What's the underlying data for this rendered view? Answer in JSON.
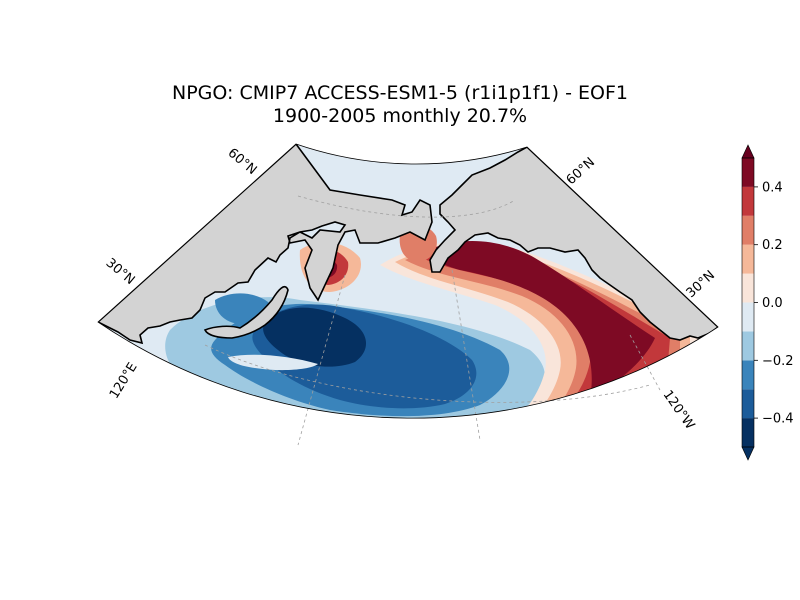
{
  "title": {
    "line1": "NPGO: CMIP7 ACCESS-ESM1-5 (r1i1p1f1) - EOF1",
    "line2": "1900-2005 monthly 20.7%"
  },
  "map": {
    "projection": "Lambert conformal conic",
    "land_color": "#d3d3d3",
    "ocean_base_color": "#dfeaf3",
    "lat_labels": [
      "60°N",
      "30°N",
      "60°N",
      "30°N"
    ],
    "lon_labels": [
      "120°E",
      "120°W"
    ]
  },
  "colorbar": {
    "tick_labels": [
      "0.4",
      "0.2",
      "0.0",
      "−0.2",
      "−0.4"
    ],
    "tick_values": [
      0.4,
      0.2,
      0.0,
      -0.2,
      -0.4
    ],
    "range": [
      -0.5,
      0.5
    ],
    "extend": "both",
    "levels": [
      {
        "from": -0.5,
        "to": -0.4,
        "color": "#053061"
      },
      {
        "from": -0.4,
        "to": -0.3,
        "color": "#1c5c9a"
      },
      {
        "from": -0.3,
        "to": -0.2,
        "color": "#3a84bb"
      },
      {
        "from": -0.2,
        "to": -0.1,
        "color": "#9ec9e1"
      },
      {
        "from": -0.1,
        "to": 0.0,
        "color": "#dfeaf3"
      },
      {
        "from": 0.0,
        "to": 0.1,
        "color": "#f9e5da"
      },
      {
        "from": 0.1,
        "to": 0.2,
        "color": "#f5b899"
      },
      {
        "from": 0.2,
        "to": 0.3,
        "color": "#e07e67"
      },
      {
        "from": 0.3,
        "to": 0.4,
        "color": "#c2383b"
      },
      {
        "from": 0.4,
        "to": 0.5,
        "color": "#7e0a24"
      }
    ],
    "under_color": "#053061",
    "over_color": "#67001f"
  }
}
